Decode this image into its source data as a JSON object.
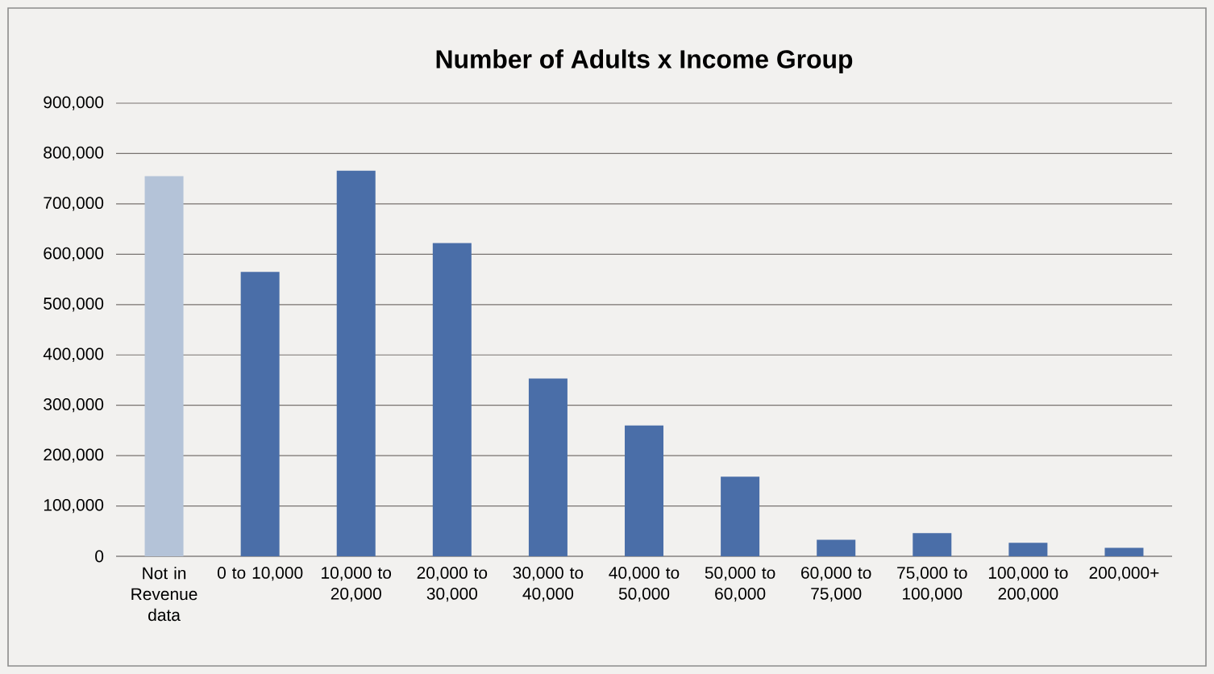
{
  "chart_data": {
    "type": "bar",
    "title": "Number of Adults x Income Group",
    "categories": [
      "Not in Revenue data",
      "0 to 10,000",
      "10,000 to 20,000",
      "20,000 to 30,000",
      "30,000 to 40,000",
      "40,000 to 50,000",
      "50,000 to 60,000",
      "60,000 to 75,000",
      "75,000 to 100,000",
      "100,000 to 200,000",
      "200,000+"
    ],
    "values": [
      755000,
      565000,
      766000,
      622000,
      353000,
      260000,
      158000,
      33000,
      46000,
      27000,
      17000
    ],
    "colors": [
      "#b4c3d8",
      "#4a6ea8",
      "#4a6ea8",
      "#4a6ea8",
      "#4a6ea8",
      "#4a6ea8",
      "#4a6ea8",
      "#4a6ea8",
      "#4a6ea8",
      "#4a6ea8",
      "#4a6ea8"
    ],
    "ylim": [
      0,
      900000
    ],
    "yticks": [
      {
        "value": 0,
        "label": "0"
      },
      {
        "value": 100000,
        "label": "100,000"
      },
      {
        "value": 200000,
        "label": "200,000"
      },
      {
        "value": 300000,
        "label": "300,000"
      },
      {
        "value": 400000,
        "label": "400,000"
      },
      {
        "value": 500000,
        "label": "500,000"
      },
      {
        "value": 600000,
        "label": "600,000"
      },
      {
        "value": 700000,
        "label": "700,000"
      },
      {
        "value": 800000,
        "label": "800,000"
      },
      {
        "value": 900000,
        "label": "900,000"
      }
    ],
    "grid": "y"
  }
}
